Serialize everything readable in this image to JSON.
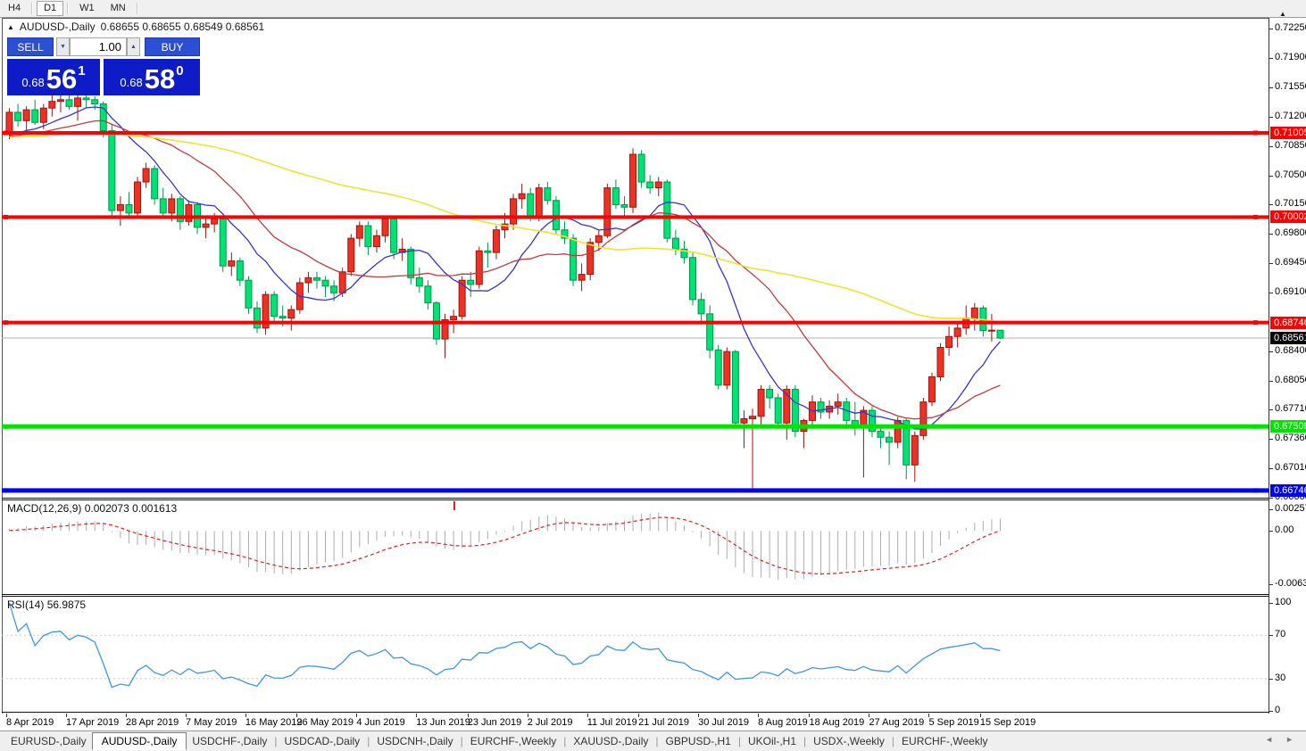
{
  "toolbar": {
    "timeframes": [
      {
        "label": "H4",
        "active": false,
        "sep_after": true
      },
      {
        "label": "D1",
        "active": true,
        "sep_after": true
      },
      {
        "label": "W1",
        "active": false,
        "sep_after": false
      },
      {
        "label": "MN",
        "active": false,
        "sep_after": true
      }
    ]
  },
  "header": {
    "symbol": "AUDUSD-,Daily",
    "ohlc": "0.68655 0.68655 0.68549 0.68561"
  },
  "trade_panel": {
    "sell_label": "SELL",
    "buy_label": "BUY",
    "volume": "1.00",
    "sell_price": {
      "small": "0.68",
      "big": "56",
      "sup": "1"
    },
    "buy_price": {
      "small": "0.68",
      "big": "58",
      "sup": "0"
    }
  },
  "price_axis": {
    "ticks": [
      "0.72250",
      "0.71900",
      "0.71550",
      "0.71200",
      "0.70850",
      "0.70500",
      "0.70150",
      "0.69800",
      "0.69450",
      "0.69100",
      "0.68400",
      "0.68050",
      "0.67710",
      "0.67360",
      "0.67010",
      "0.66660"
    ]
  },
  "levels": [
    {
      "price": 0.71005,
      "label": "0.71005",
      "color": "#ff0000",
      "width": 4
    },
    {
      "price": 0.70002,
      "label": "0.70002",
      "color": "#ff0000",
      "width": 4
    },
    {
      "price": 0.68746,
      "label": "0.68746",
      "color": "#ff0000",
      "width": 4
    },
    {
      "price": 0.67508,
      "label": "0.67508",
      "color": "#00e400",
      "width": 5
    },
    {
      "price": 0.66746,
      "label": "0.66746",
      "color": "#0000ff",
      "width": 5
    }
  ],
  "current_price": {
    "value": 0.68561,
    "label": "0.68561"
  },
  "indicators": {
    "macd": {
      "title": "MACD(12,26,9)",
      "values": "0.002073 0.001613",
      "params": [
        12,
        26,
        9
      ],
      "axis_labels": [
        "0.002574",
        "0.00",
        "-0.006326"
      ],
      "axis_values": [
        0.002574,
        0,
        -0.006326
      ]
    },
    "rsi": {
      "title": "RSI(14)",
      "value": "56.9875",
      "period": 14,
      "axis_labels": [
        "100",
        "70",
        "30",
        "0"
      ],
      "axis_values": [
        100,
        70,
        30,
        0
      ],
      "level_lines": [
        70,
        30
      ]
    }
  },
  "chart_data": {
    "type": "candlestick",
    "symbol": "AUDUSD",
    "timeframe": "Daily",
    "price_range": {
      "top": 0.7229,
      "bottom": 0.6666
    },
    "macd_range": {
      "max": 0.002574,
      "min": -0.006326
    },
    "rsi_range": {
      "max": 100,
      "min": 0
    },
    "indicator_warmup_close": 0.7095,
    "moving_averages": [
      {
        "period": 10,
        "color": "#3535cc"
      },
      {
        "period": 20,
        "color": "#c23b3b"
      },
      {
        "period": 60,
        "color": "#f0e232"
      }
    ],
    "date_ticks": [
      [
        "8 Apr 2019",
        0
      ],
      [
        "17 Apr 2019",
        7
      ],
      [
        "28 Apr 2019",
        14
      ],
      [
        "7 May 2019",
        21
      ],
      [
        "16 May 2019",
        28
      ],
      [
        "26 May 2019",
        34
      ],
      [
        "4 Jun 2019",
        41
      ],
      [
        "13 Jun 2019",
        48
      ],
      [
        "23 Jun 2019",
        54
      ],
      [
        "2 Jul 2019",
        61
      ],
      [
        "11 Jul 2019",
        68
      ],
      [
        "21 Jul 2019",
        74
      ],
      [
        "30 Jul 2019",
        81
      ],
      [
        "8 Aug 2019",
        88
      ],
      [
        "18 Aug 2019",
        94
      ],
      [
        "27 Aug 2019",
        101
      ],
      [
        "5 Sep 2019",
        108
      ],
      [
        "15 Sep 2019",
        114
      ]
    ],
    "candles": [
      [
        0.7102,
        0.713,
        0.7093,
        0.7125
      ],
      [
        0.7125,
        0.7135,
        0.7108,
        0.7115
      ],
      [
        0.7115,
        0.7132,
        0.7102,
        0.7128
      ],
      [
        0.7128,
        0.714,
        0.711,
        0.7113
      ],
      [
        0.7113,
        0.7135,
        0.7105,
        0.713
      ],
      [
        0.713,
        0.7145,
        0.712,
        0.7138
      ],
      [
        0.7138,
        0.7148,
        0.7125,
        0.714
      ],
      [
        0.714,
        0.715,
        0.7128,
        0.7132
      ],
      [
        0.7132,
        0.7145,
        0.7115,
        0.7142
      ],
      [
        0.7142,
        0.7146,
        0.713,
        0.714
      ],
      [
        0.714,
        0.7144,
        0.7128,
        0.7135
      ],
      [
        0.7135,
        0.7138,
        0.7095,
        0.7103
      ],
      [
        0.7103,
        0.711,
        0.7,
        0.7008
      ],
      [
        0.7008,
        0.7025,
        0.699,
        0.7015
      ],
      [
        0.7015,
        0.703,
        0.6998,
        0.7005
      ],
      [
        0.7005,
        0.7048,
        0.7,
        0.7042
      ],
      [
        0.7042,
        0.7065,
        0.7035,
        0.7058
      ],
      [
        0.7058,
        0.7062,
        0.7015,
        0.7022
      ],
      [
        0.7022,
        0.7035,
        0.6998,
        0.7005
      ],
      [
        0.7005,
        0.7028,
        0.6995,
        0.7022
      ],
      [
        0.7022,
        0.7025,
        0.6985,
        0.6995
      ],
      [
        0.6995,
        0.702,
        0.699,
        0.7015
      ],
      [
        0.7015,
        0.7018,
        0.698,
        0.6988
      ],
      [
        0.6988,
        0.7,
        0.6975,
        0.6992
      ],
      [
        0.6992,
        0.7005,
        0.6982,
        0.6998
      ],
      [
        0.6998,
        0.7,
        0.6935,
        0.6942
      ],
      [
        0.6942,
        0.6958,
        0.693,
        0.6948
      ],
      [
        0.6948,
        0.6952,
        0.6918,
        0.6925
      ],
      [
        0.6925,
        0.693,
        0.6885,
        0.6892
      ],
      [
        0.6892,
        0.69,
        0.6862,
        0.6868
      ],
      [
        0.6868,
        0.6912,
        0.686,
        0.6908
      ],
      [
        0.6908,
        0.6912,
        0.6875,
        0.6882
      ],
      [
        0.6882,
        0.6895,
        0.687,
        0.688
      ],
      [
        0.688,
        0.6895,
        0.6865,
        0.689
      ],
      [
        0.689,
        0.6928,
        0.6885,
        0.6922
      ],
      [
        0.6922,
        0.6935,
        0.691,
        0.6928
      ],
      [
        0.6928,
        0.6935,
        0.6915,
        0.6925
      ],
      [
        0.6925,
        0.693,
        0.6905,
        0.6918
      ],
      [
        0.6918,
        0.6925,
        0.69,
        0.691
      ],
      [
        0.691,
        0.694,
        0.6905,
        0.6935
      ],
      [
        0.6935,
        0.698,
        0.693,
        0.6975
      ],
      [
        0.6975,
        0.6995,
        0.6965,
        0.699
      ],
      [
        0.699,
        0.6995,
        0.6955,
        0.6965
      ],
      [
        0.6965,
        0.6985,
        0.6958,
        0.6978
      ],
      [
        0.6978,
        0.7,
        0.697,
        0.6998
      ],
      [
        0.6998,
        0.7,
        0.695,
        0.6958
      ],
      [
        0.6958,
        0.6975,
        0.6948,
        0.6962
      ],
      [
        0.6962,
        0.6965,
        0.692,
        0.6928
      ],
      [
        0.6928,
        0.694,
        0.691,
        0.6918
      ],
      [
        0.6918,
        0.6925,
        0.689,
        0.6898
      ],
      [
        0.6898,
        0.69,
        0.6848,
        0.6855
      ],
      [
        0.6855,
        0.6885,
        0.6832,
        0.6878
      ],
      [
        0.6878,
        0.689,
        0.6862,
        0.6882
      ],
      [
        0.6882,
        0.693,
        0.6878,
        0.6925
      ],
      [
        0.6925,
        0.6935,
        0.6905,
        0.692
      ],
      [
        0.692,
        0.6965,
        0.6915,
        0.696
      ],
      [
        0.696,
        0.697,
        0.694,
        0.6958
      ],
      [
        0.6958,
        0.699,
        0.695,
        0.6985
      ],
      [
        0.6985,
        0.7005,
        0.6975,
        0.6992
      ],
      [
        0.6992,
        0.7028,
        0.6985,
        0.7022
      ],
      [
        0.7022,
        0.704,
        0.701,
        0.7028
      ],
      [
        0.7028,
        0.7035,
        0.6995,
        0.7
      ],
      [
        0.7,
        0.704,
        0.6995,
        0.7035
      ],
      [
        0.7035,
        0.7042,
        0.7015,
        0.702
      ],
      [
        0.702,
        0.7025,
        0.698,
        0.6985
      ],
      [
        0.6985,
        0.6995,
        0.6968,
        0.6975
      ],
      [
        0.6975,
        0.698,
        0.6918,
        0.6925
      ],
      [
        0.6925,
        0.6945,
        0.6912,
        0.6932
      ],
      [
        0.6932,
        0.6975,
        0.6925,
        0.697
      ],
      [
        0.697,
        0.6985,
        0.696,
        0.6978
      ],
      [
        0.6978,
        0.704,
        0.6975,
        0.7035
      ],
      [
        0.7035,
        0.7045,
        0.701,
        0.7015
      ],
      [
        0.7015,
        0.7025,
        0.7,
        0.7012
      ],
      [
        0.7012,
        0.7082,
        0.7005,
        0.7075
      ],
      [
        0.7075,
        0.708,
        0.7035,
        0.7042
      ],
      [
        0.7042,
        0.705,
        0.7028,
        0.7035
      ],
      [
        0.7035,
        0.7048,
        0.7025,
        0.7042
      ],
      [
        0.7042,
        0.7045,
        0.697,
        0.6975
      ],
      [
        0.6975,
        0.6985,
        0.6955,
        0.6962
      ],
      [
        0.6962,
        0.6972,
        0.6945,
        0.6952
      ],
      [
        0.6952,
        0.6958,
        0.6895,
        0.6902
      ],
      [
        0.6902,
        0.691,
        0.6872,
        0.6885
      ],
      [
        0.6885,
        0.6895,
        0.6832,
        0.6842
      ],
      [
        0.6842,
        0.6848,
        0.6795,
        0.68
      ],
      [
        0.68,
        0.6845,
        0.6795,
        0.684
      ],
      [
        0.684,
        0.6842,
        0.6748,
        0.6755
      ],
      [
        0.6755,
        0.677,
        0.6725,
        0.676
      ],
      [
        0.676,
        0.6772,
        0.6677,
        0.6763
      ],
      [
        0.6763,
        0.68,
        0.675,
        0.6795
      ],
      [
        0.6795,
        0.68,
        0.6772,
        0.6785
      ],
      [
        0.6785,
        0.679,
        0.6748,
        0.6755
      ],
      [
        0.6755,
        0.68,
        0.6735,
        0.6795
      ],
      [
        0.6795,
        0.68,
        0.6738,
        0.6745
      ],
      [
        0.6745,
        0.676,
        0.6725,
        0.6758
      ],
      [
        0.6758,
        0.6788,
        0.675,
        0.678
      ],
      [
        0.678,
        0.6785,
        0.676,
        0.6768
      ],
      [
        0.6768,
        0.6782,
        0.676,
        0.6775
      ],
      [
        0.6775,
        0.679,
        0.6765,
        0.678
      ],
      [
        0.678,
        0.6785,
        0.6748,
        0.6758
      ],
      [
        0.6758,
        0.678,
        0.674,
        0.6752
      ],
      [
        0.6752,
        0.6775,
        0.669,
        0.677
      ],
      [
        0.677,
        0.6775,
        0.6738,
        0.6745
      ],
      [
        0.6745,
        0.6752,
        0.6725,
        0.6738
      ],
      [
        0.6738,
        0.6745,
        0.6705,
        0.6732
      ],
      [
        0.6732,
        0.6762,
        0.6725,
        0.6758
      ],
      [
        0.6758,
        0.676,
        0.6688,
        0.6705
      ],
      [
        0.6705,
        0.6745,
        0.6685,
        0.674
      ],
      [
        0.674,
        0.6785,
        0.6735,
        0.678
      ],
      [
        0.678,
        0.6815,
        0.6775,
        0.681
      ],
      [
        0.681,
        0.685,
        0.6805,
        0.6845
      ],
      [
        0.6845,
        0.687,
        0.6835,
        0.6858
      ],
      [
        0.6858,
        0.6875,
        0.6845,
        0.6868
      ],
      [
        0.6868,
        0.6895,
        0.686,
        0.688
      ],
      [
        0.688,
        0.6898,
        0.6865,
        0.6892
      ],
      [
        0.6892,
        0.6895,
        0.6858,
        0.6865
      ],
      [
        0.6865,
        0.6885,
        0.6852,
        0.68655
      ],
      [
        0.68655,
        0.68655,
        0.68549,
        0.68561
      ]
    ]
  },
  "tabs": {
    "items": [
      {
        "label": "EURUSD-,Daily",
        "active": false
      },
      {
        "label": "AUDUSD-,Daily",
        "active": true
      },
      {
        "label": "USDCHF-,Daily",
        "active": false
      },
      {
        "label": "USDCAD-,Daily",
        "active": false
      },
      {
        "label": "USDCNH-,Daily",
        "active": false
      },
      {
        "label": "EURCHF-,Weekly",
        "active": false
      },
      {
        "label": "XAUUSD-,Daily",
        "active": false
      },
      {
        "label": "GBPUSD-,H1",
        "active": false
      },
      {
        "label": "UKOil-,H1",
        "active": false
      },
      {
        "label": "USDX-,Weekly",
        "active": false
      },
      {
        "label": "EURCHF-,Weekly",
        "active": false
      }
    ]
  },
  "colors": {
    "bull": "#ef3124",
    "bull_border": "#9a1510",
    "bear": "#00e273",
    "bear_border": "#00944a",
    "ma_fast": "#3535cc",
    "ma_mid": "#c23b3b",
    "ma_slow": "#f0e232",
    "macd_hist": "#adadad",
    "macd_signal": "#dd2222",
    "rsi_line": "#3e96e8",
    "rsi_levels": "#c9c9c9",
    "price_line": "#b0b0b0",
    "current_label_bg": "#000000",
    "accent_blue": "#2b50d4",
    "deep_blue": "#0e1cc8"
  }
}
